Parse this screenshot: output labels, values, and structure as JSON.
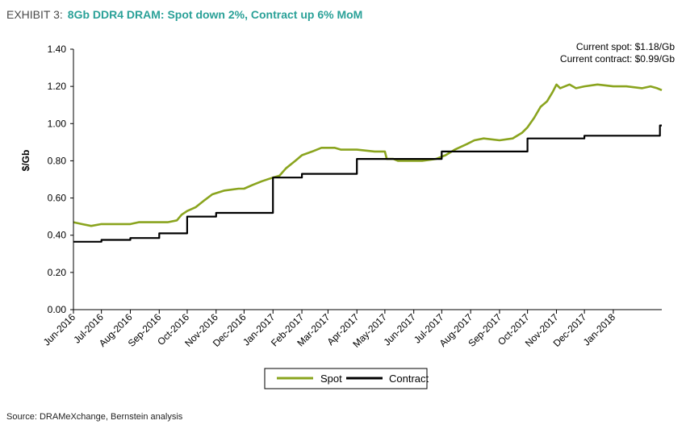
{
  "header": {
    "exhibit_label": "EXHIBIT 3:",
    "title": "8Gb DDR4 DRAM: Spot down 2%, Contract up 6% MoM"
  },
  "footer": {
    "source": "Source: DRAMeXchange, Bernstein analysis"
  },
  "colors": {
    "spot": "#8aa41e",
    "contract": "#000000",
    "title": "#2aa198"
  },
  "chart_data": {
    "type": "line",
    "ylabel": "$/Gb",
    "ylim": [
      0,
      1.4
    ],
    "yticks": [
      "0.00",
      "0.20",
      "0.40",
      "0.60",
      "0.80",
      "1.00",
      "1.20",
      "1.40"
    ],
    "xlim": [
      "2016-06-01",
      "2018-02-22"
    ],
    "x_ticks": [
      {
        "label": "Jun-2016",
        "date": "2016-06-01"
      },
      {
        "label": "Jul-2016",
        "date": "2016-07-01"
      },
      {
        "label": "Aug-2016",
        "date": "2016-08-01"
      },
      {
        "label": "Sep-2016",
        "date": "2016-09-01"
      },
      {
        "label": "Oct-2016",
        "date": "2016-10-01"
      },
      {
        "label": "Nov-2016",
        "date": "2016-11-01"
      },
      {
        "label": "Dec-2016",
        "date": "2016-12-01"
      },
      {
        "label": "Jan-2017",
        "date": "2017-01-01"
      },
      {
        "label": "Feb-2017",
        "date": "2017-02-01"
      },
      {
        "label": "Mar-2017",
        "date": "2017-03-01"
      },
      {
        "label": "Apr-2017",
        "date": "2017-04-01"
      },
      {
        "label": "May-2017",
        "date": "2017-05-01"
      },
      {
        "label": "Jun-2017",
        "date": "2017-06-01"
      },
      {
        "label": "Jul-2017",
        "date": "2017-07-01"
      },
      {
        "label": "Aug-2017",
        "date": "2017-08-01"
      },
      {
        "label": "Sep-2017",
        "date": "2017-09-01"
      },
      {
        "label": "Oct-2017",
        "date": "2017-10-01"
      },
      {
        "label": "Nov-2017",
        "date": "2017-11-01"
      },
      {
        "label": "Dec-2017",
        "date": "2017-12-01"
      },
      {
        "label": "Jan-2018",
        "date": "2018-01-01"
      }
    ],
    "annotations": [
      "Current spot: $1.18/Gb",
      "Current contract: $0.99/Gb"
    ],
    "legend_position": "bottom-center",
    "series": [
      {
        "name": "Spot",
        "style": "line",
        "points": [
          [
            "2016-06-01",
            0.47
          ],
          [
            "2016-06-10",
            0.46
          ],
          [
            "2016-06-20",
            0.45
          ],
          [
            "2016-07-01",
            0.46
          ],
          [
            "2016-08-01",
            0.46
          ],
          [
            "2016-08-10",
            0.47
          ],
          [
            "2016-09-10",
            0.47
          ],
          [
            "2016-09-20",
            0.48
          ],
          [
            "2016-09-25",
            0.51
          ],
          [
            "2016-10-01",
            0.53
          ],
          [
            "2016-10-10",
            0.55
          ],
          [
            "2016-10-20",
            0.59
          ],
          [
            "2016-10-28",
            0.62
          ],
          [
            "2016-11-10",
            0.64
          ],
          [
            "2016-11-25",
            0.65
          ],
          [
            "2016-12-01",
            0.65
          ],
          [
            "2016-12-10",
            0.67
          ],
          [
            "2016-12-20",
            0.69
          ],
          [
            "2017-01-01",
            0.71
          ],
          [
            "2017-01-08",
            0.72
          ],
          [
            "2017-01-15",
            0.76
          ],
          [
            "2017-01-25",
            0.8
          ],
          [
            "2017-02-01",
            0.83
          ],
          [
            "2017-02-12",
            0.85
          ],
          [
            "2017-02-22",
            0.87
          ],
          [
            "2017-03-08",
            0.87
          ],
          [
            "2017-03-15",
            0.86
          ],
          [
            "2017-04-01",
            0.86
          ],
          [
            "2017-04-20",
            0.85
          ],
          [
            "2017-05-01",
            0.85
          ],
          [
            "2017-05-03",
            0.81
          ],
          [
            "2017-05-10",
            0.81
          ],
          [
            "2017-05-15",
            0.8
          ],
          [
            "2017-06-10",
            0.8
          ],
          [
            "2017-06-25",
            0.81
          ],
          [
            "2017-07-05",
            0.83
          ],
          [
            "2017-07-15",
            0.86
          ],
          [
            "2017-07-28",
            0.89
          ],
          [
            "2017-08-05",
            0.91
          ],
          [
            "2017-08-15",
            0.92
          ],
          [
            "2017-09-01",
            0.91
          ],
          [
            "2017-09-15",
            0.92
          ],
          [
            "2017-09-25",
            0.95
          ],
          [
            "2017-10-01",
            0.98
          ],
          [
            "2017-10-08",
            1.03
          ],
          [
            "2017-10-15",
            1.09
          ],
          [
            "2017-10-22",
            1.12
          ],
          [
            "2017-10-28",
            1.17
          ],
          [
            "2017-11-01",
            1.21
          ],
          [
            "2017-11-05",
            1.19
          ],
          [
            "2017-11-15",
            1.21
          ],
          [
            "2017-11-22",
            1.19
          ],
          [
            "2017-12-01",
            1.2
          ],
          [
            "2017-12-15",
            1.21
          ],
          [
            "2018-01-01",
            1.2
          ],
          [
            "2018-01-15",
            1.2
          ],
          [
            "2018-02-01",
            1.19
          ],
          [
            "2018-02-10",
            1.2
          ],
          [
            "2018-02-17",
            1.19
          ],
          [
            "2018-02-22",
            1.18
          ]
        ]
      },
      {
        "name": "Contract",
        "style": "step",
        "points": [
          [
            "2016-06-01",
            0.365
          ],
          [
            "2016-07-01",
            0.375
          ],
          [
            "2016-08-01",
            0.385
          ],
          [
            "2016-09-01",
            0.41
          ],
          [
            "2016-10-01",
            0.5
          ],
          [
            "2016-11-01",
            0.52
          ],
          [
            "2017-01-01",
            0.71
          ],
          [
            "2017-02-01",
            0.73
          ],
          [
            "2017-04-01",
            0.81
          ],
          [
            "2017-07-01",
            0.85
          ],
          [
            "2017-10-01",
            0.92
          ],
          [
            "2017-12-01",
            0.935
          ],
          [
            "2018-02-20",
            0.99
          ],
          [
            "2018-02-22",
            0.99
          ]
        ]
      }
    ]
  }
}
